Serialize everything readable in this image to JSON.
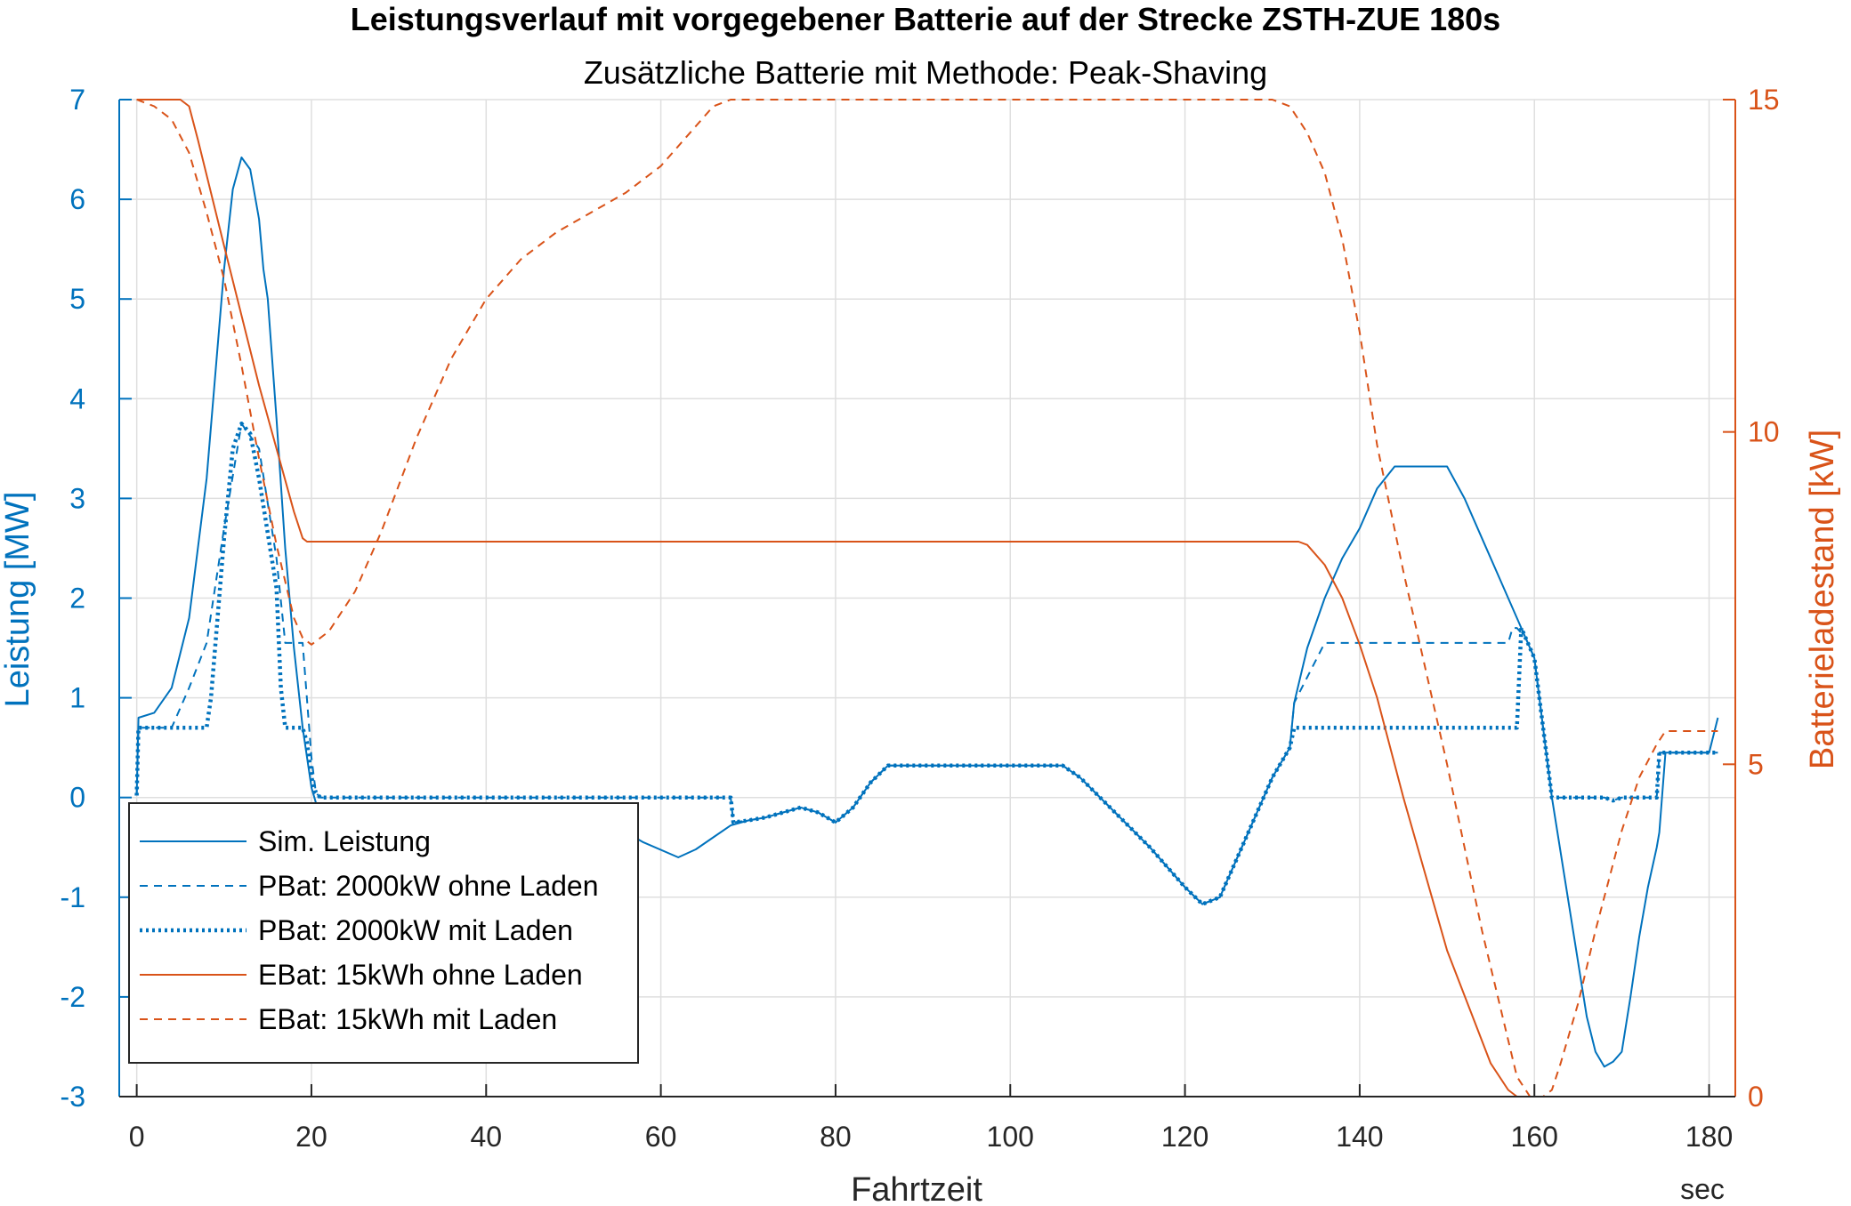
{
  "chart_data": {
    "type": "line",
    "title": "Leistungsverlauf mit vorgegebener Batterie auf der Strecke ZSTH-ZUE 180s",
    "subtitle": "Zusätzliche Batterie mit Methode: Peak-Shaving",
    "xlabel": "Fahrtzeit",
    "x_unit": "sec",
    "ylabel_left": "Leistung [MW]",
    "ylabel_right": "Batterieladestand [kW]",
    "xlim": [
      -2,
      183
    ],
    "ylim_left": [
      -3,
      7
    ],
    "ylim_right": [
      0,
      15
    ],
    "xticks": [
      "0",
      "20",
      "40",
      "60",
      "80",
      "100",
      "120",
      "140",
      "160",
      "180"
    ],
    "yticks_left": [
      "7",
      "6",
      "5",
      "4",
      "3",
      "2",
      "1",
      "0",
      "-1",
      "-2",
      "-3"
    ],
    "yticks_right": [
      "15",
      "10",
      "5",
      "0"
    ],
    "grid": true,
    "legend_position": "bottom-left",
    "colors": {
      "left_axis": "#0072BD",
      "right_axis": "#D95319",
      "grid": "#dfdfdf"
    },
    "series": [
      {
        "name": "Sim. Leistung",
        "axis": "left",
        "color": "#0072BD",
        "style": "solid",
        "x": [
          0,
          0.2,
          2,
          4,
          6,
          8,
          10,
          11,
          12,
          13,
          14,
          14.5,
          15,
          16,
          17,
          18,
          19,
          20,
          20.5,
          21,
          22,
          25,
          30,
          35,
          40,
          44,
          44.5,
          48,
          49,
          49.5,
          51,
          52,
          56,
          57,
          58,
          62,
          64,
          66,
          68,
          70,
          72,
          74,
          76,
          78,
          80,
          82,
          84,
          86,
          100,
          106,
          108,
          112,
          116,
          120,
          122,
          124,
          126,
          128,
          130,
          132,
          132.5,
          134,
          136,
          138,
          140,
          142,
          144,
          146,
          148,
          150,
          152,
          154,
          156,
          157,
          158,
          159,
          160,
          161,
          162,
          164,
          166,
          167,
          168,
          169,
          170,
          171,
          172,
          173,
          174,
          174.3,
          175,
          178,
          180,
          181
        ],
        "values": [
          0.02,
          0.8,
          0.85,
          1.1,
          1.8,
          3.2,
          5.3,
          6.1,
          6.42,
          6.3,
          5.8,
          5.3,
          5.0,
          3.8,
          2.5,
          1.5,
          0.7,
          0.1,
          -0.05,
          -0.3,
          -0.4,
          -0.42,
          -0.42,
          -0.42,
          -0.42,
          -0.42,
          -0.38,
          -0.35,
          -0.32,
          -0.27,
          -0.3,
          -0.32,
          -0.35,
          -0.4,
          -0.45,
          -0.6,
          -0.52,
          -0.4,
          -0.28,
          -0.23,
          -0.2,
          -0.15,
          -0.1,
          -0.15,
          -0.25,
          -0.1,
          0.15,
          0.32,
          0.32,
          0.32,
          0.2,
          -0.15,
          -0.5,
          -0.9,
          -1.07,
          -1.0,
          -0.6,
          -0.2,
          0.2,
          0.5,
          0.95,
          1.5,
          2.0,
          2.4,
          2.7,
          3.1,
          3.32,
          3.32,
          3.32,
          3.32,
          3.0,
          2.6,
          2.2,
          2.0,
          1.8,
          1.6,
          1.4,
          0.7,
          0.0,
          -1.1,
          -2.2,
          -2.55,
          -2.7,
          -2.65,
          -2.55,
          -2.0,
          -1.4,
          -0.9,
          -0.5,
          -0.35,
          0.45,
          0.45,
          0.45,
          0.8
        ]
      },
      {
        "name": "PBat: 2000kW ohne Laden",
        "axis": "left",
        "color": "#0072BD",
        "style": "dashed",
        "x": [
          0,
          0.2,
          4,
          6,
          8,
          10,
          12,
          14,
          16,
          17,
          18,
          19,
          20,
          20.5,
          21,
          68,
          68.3,
          70,
          72,
          74,
          76,
          78,
          80,
          82,
          84,
          86,
          100,
          106,
          108,
          112,
          116,
          120,
          122,
          124,
          126,
          128,
          130,
          132,
          132.5,
          136,
          140,
          157,
          157.5,
          158,
          159,
          160,
          161,
          162,
          164,
          168,
          169,
          170,
          174,
          174.3,
          175,
          178,
          181
        ],
        "values": [
          0.02,
          0.7,
          0.7,
          1.1,
          1.55,
          2.7,
          3.75,
          3.5,
          2.4,
          1.55,
          1.55,
          1.55,
          0.4,
          0.05,
          0.0,
          0.0,
          -0.25,
          -0.23,
          -0.2,
          -0.15,
          -0.1,
          -0.15,
          -0.25,
          -0.1,
          0.15,
          0.32,
          0.32,
          0.32,
          0.2,
          -0.15,
          -0.5,
          -0.9,
          -1.07,
          -1.0,
          -0.6,
          -0.2,
          0.2,
          0.5,
          0.95,
          1.55,
          1.55,
          1.55,
          1.7,
          1.7,
          1.6,
          1.4,
          0.7,
          0.0,
          0.0,
          0.0,
          -0.03,
          0.0,
          0.0,
          0.45,
          0.45,
          0.45,
          0.45
        ]
      },
      {
        "name": "PBat: 2000kW mit Laden",
        "axis": "left",
        "color": "#0072BD",
        "style": "dotted",
        "x": [
          0,
          0.2,
          8,
          8.5,
          10,
          11,
          12,
          13,
          14,
          16,
          16.5,
          17,
          19,
          19.5,
          20,
          20.5,
          21,
          68,
          68.3,
          70,
          72,
          74,
          76,
          78,
          80,
          82,
          84,
          86,
          100,
          106,
          108,
          112,
          116,
          120,
          122,
          124,
          126,
          128,
          130,
          132,
          132.5,
          134,
          158,
          158.5,
          159,
          160,
          161,
          162,
          164,
          168,
          169,
          170,
          174,
          174.3,
          175,
          178,
          181
        ],
        "values": [
          0.02,
          0.7,
          0.7,
          1.0,
          2.6,
          3.5,
          3.75,
          3.65,
          3.2,
          2.1,
          1.1,
          0.7,
          0.7,
          0.55,
          0.2,
          0.05,
          0.0,
          0.0,
          -0.25,
          -0.23,
          -0.2,
          -0.15,
          -0.1,
          -0.15,
          -0.25,
          -0.1,
          0.15,
          0.32,
          0.32,
          0.32,
          0.2,
          -0.15,
          -0.5,
          -0.9,
          -1.07,
          -1.0,
          -0.6,
          -0.2,
          0.2,
          0.5,
          0.7,
          0.7,
          0.7,
          1.7,
          1.6,
          1.4,
          0.7,
          0.0,
          0.0,
          0.0,
          -0.03,
          0.0,
          0.0,
          0.45,
          0.45,
          0.45,
          0.45
        ]
      },
      {
        "name": "EBat: 15kWh ohne Laden",
        "axis": "right",
        "color": "#D95319",
        "style": "solid",
        "x": [
          0,
          5,
          6,
          7,
          10,
          14,
          18,
          19,
          19.5,
          20,
          130,
          133,
          134,
          136,
          138,
          140,
          142,
          145,
          150,
          155,
          157,
          158,
          159
        ],
        "values": [
          15,
          15,
          14.9,
          14.4,
          12.8,
          10.7,
          8.8,
          8.4,
          8.35,
          8.35,
          8.35,
          8.35,
          8.3,
          8.0,
          7.5,
          6.8,
          6.0,
          4.5,
          2.2,
          0.5,
          0.1,
          0.0,
          0.0
        ]
      },
      {
        "name": "EBat: 15kWh mit Laden",
        "axis": "right",
        "color": "#D95319",
        "style": "dashed",
        "x": [
          0,
          2,
          4,
          6,
          8,
          10,
          12,
          14,
          16,
          18,
          19,
          20,
          22,
          25,
          28,
          32,
          36,
          40,
          44,
          48,
          52,
          56,
          60,
          64,
          66,
          68,
          130,
          132,
          134,
          136,
          138,
          140,
          142,
          145,
          150,
          154,
          158,
          159.5,
          161,
          162,
          163,
          165,
          167,
          170,
          172,
          174,
          175,
          181
        ],
        "values": [
          15,
          14.9,
          14.7,
          14.2,
          13.3,
          12.3,
          11.0,
          9.6,
          8.3,
          7.2,
          6.9,
          6.8,
          7.0,
          7.6,
          8.5,
          9.9,
          11.1,
          12.0,
          12.6,
          13.0,
          13.3,
          13.6,
          14.0,
          14.6,
          14.9,
          15,
          15,
          14.9,
          14.5,
          13.9,
          12.9,
          11.5,
          9.8,
          7.9,
          5.0,
          2.5,
          0.3,
          0.0,
          0.0,
          0.1,
          0.5,
          1.4,
          2.5,
          4.0,
          4.8,
          5.3,
          5.5,
          5.5
        ]
      }
    ]
  }
}
